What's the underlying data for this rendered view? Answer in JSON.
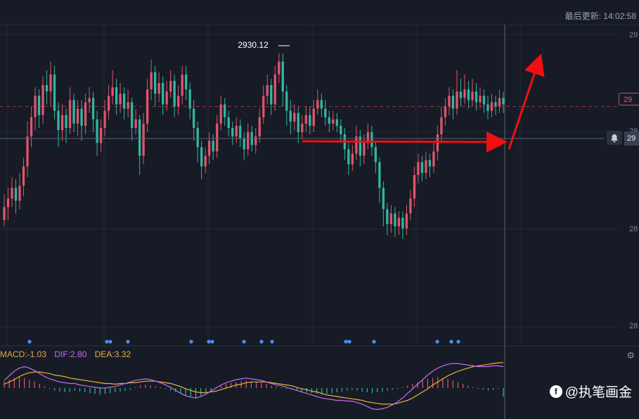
{
  "header": {
    "last_update": "最后更新: 14:02:58"
  },
  "watermark": {
    "text": "@执笔画金"
  },
  "colors": {
    "up": "#e0556a",
    "down": "#2fb8a1",
    "background": "#161b26",
    "grid": "#222938",
    "dif": "#c86bf2",
    "dea": "#e8b33c",
    "macd_label": "#e8a64a",
    "arrow": "#f01010",
    "dot": "#4a8ff0"
  },
  "icons": [
    "bell-icon",
    "gear-icon",
    "watermark-logo-icon"
  ],
  "y_axis": {
    "tick_labels": [
      "29",
      "29",
      "28",
      "28"
    ],
    "price_tag": "29",
    "current_tag": "29"
  },
  "macd": {
    "macd_label": "MACD:-1.03",
    "dif_label": "DIF:2.80",
    "dea_label": "DEA:3.32"
  },
  "chart_data": {
    "type": "candlestick",
    "title": "",
    "annotation": {
      "label": "2930.12",
      "value": 2930.12
    },
    "ylim": [
      2802,
      2940
    ],
    "reference_price": 2905,
    "current_price": 2890,
    "signal_dot_positions": [
      42,
      152,
      157,
      182,
      272,
      297,
      302,
      347,
      372,
      387,
      492,
      497,
      532,
      622,
      642,
      652
    ],
    "candles": [
      [
        2852,
        2858,
        2864,
        2849
      ],
      [
        2858,
        2862,
        2867,
        2852
      ],
      [
        2862,
        2867,
        2872,
        2858
      ],
      [
        2867,
        2861,
        2871,
        2855
      ],
      [
        2861,
        2868,
        2874,
        2857
      ],
      [
        2868,
        2877,
        2881,
        2863
      ],
      [
        2877,
        2891,
        2898,
        2872
      ],
      [
        2891,
        2900,
        2905,
        2886
      ],
      [
        2900,
        2910,
        2914,
        2894
      ],
      [
        2910,
        2901,
        2913,
        2895
      ],
      [
        2901,
        2915,
        2919,
        2897
      ],
      [
        2915,
        2912,
        2922,
        2906
      ],
      [
        2912,
        2920,
        2926,
        2905
      ],
      [
        2920,
        2903,
        2924,
        2899
      ],
      [
        2903,
        2894,
        2907,
        2886
      ],
      [
        2894,
        2901,
        2906,
        2889
      ],
      [
        2901,
        2895,
        2904,
        2888
      ],
      [
        2895,
        2908,
        2914,
        2892
      ],
      [
        2908,
        2897,
        2911,
        2893
      ],
      [
        2897,
        2904,
        2908,
        2891
      ],
      [
        2904,
        2896,
        2908,
        2889
      ],
      [
        2896,
        2907,
        2911,
        2892
      ],
      [
        2907,
        2909,
        2914,
        2902
      ],
      [
        2909,
        2899,
        2912,
        2893
      ],
      [
        2899,
        2888,
        2903,
        2882
      ],
      [
        2888,
        2895,
        2899,
        2884
      ],
      [
        2895,
        2903,
        2908,
        2891
      ],
      [
        2903,
        2910,
        2915,
        2899
      ],
      [
        2910,
        2914,
        2922,
        2906
      ],
      [
        2914,
        2906,
        2918,
        2901
      ],
      [
        2906,
        2911,
        2916,
        2902
      ],
      [
        2911,
        2904,
        2914,
        2899
      ],
      [
        2904,
        2907,
        2913,
        2900
      ],
      [
        2907,
        2895,
        2909,
        2889
      ],
      [
        2895,
        2899,
        2904,
        2892
      ],
      [
        2899,
        2882,
        2901,
        2873
      ],
      [
        2882,
        2897,
        2902,
        2878
      ],
      [
        2897,
        2913,
        2918,
        2893
      ],
      [
        2913,
        2921,
        2927,
        2908
      ],
      [
        2921,
        2911,
        2924,
        2905
      ],
      [
        2911,
        2916,
        2921,
        2907
      ],
      [
        2916,
        2906,
        2919,
        2901
      ],
      [
        2906,
        2912,
        2917,
        2903
      ],
      [
        2912,
        2917,
        2922,
        2909
      ],
      [
        2917,
        2905,
        2920,
        2900
      ],
      [
        2905,
        2910,
        2915,
        2901
      ],
      [
        2910,
        2920,
        2924,
        2906
      ],
      [
        2920,
        2913,
        2924,
        2908
      ],
      [
        2913,
        2904,
        2916,
        2899
      ],
      [
        2904,
        2895,
        2908,
        2889
      ],
      [
        2895,
        2886,
        2898,
        2879
      ],
      [
        2886,
        2877,
        2889,
        2871
      ],
      [
        2877,
        2882,
        2886,
        2874
      ],
      [
        2882,
        2889,
        2893,
        2878
      ],
      [
        2889,
        2884,
        2892,
        2880
      ],
      [
        2884,
        2897,
        2901,
        2881
      ],
      [
        2897,
        2906,
        2910,
        2894
      ],
      [
        2906,
        2900,
        2909,
        2896
      ],
      [
        2900,
        2895,
        2903,
        2891
      ],
      [
        2895,
        2891,
        2898,
        2887
      ],
      [
        2891,
        2896,
        2900,
        2888
      ],
      [
        2896,
        2890,
        2899,
        2886
      ],
      [
        2890,
        2885,
        2893,
        2880
      ],
      [
        2885,
        2893,
        2897,
        2882
      ],
      [
        2893,
        2887,
        2896,
        2884
      ],
      [
        2887,
        2891,
        2895,
        2883
      ],
      [
        2891,
        2900,
        2904,
        2888
      ],
      [
        2900,
        2910,
        2915,
        2897
      ],
      [
        2910,
        2915,
        2920,
        2906
      ],
      [
        2915,
        2906,
        2918,
        2901
      ],
      [
        2906,
        2920,
        2924,
        2903
      ],
      [
        2920,
        2926,
        2930,
        2916
      ],
      [
        2926,
        2912,
        2930,
        2905
      ],
      [
        2912,
        2903,
        2915,
        2896
      ],
      [
        2903,
        2898,
        2908,
        2892
      ],
      [
        2898,
        2902,
        2906,
        2894
      ],
      [
        2902,
        2893,
        2905,
        2888
      ],
      [
        2893,
        2897,
        2901,
        2890
      ],
      [
        2897,
        2901,
        2905,
        2893
      ],
      [
        2901,
        2896,
        2905,
        2892
      ],
      [
        2896,
        2904,
        2908,
        2893
      ],
      [
        2904,
        2908,
        2913,
        2901
      ],
      [
        2908,
        2904,
        2911,
        2900
      ],
      [
        2904,
        2900,
        2908,
        2896
      ],
      [
        2900,
        2897,
        2903,
        2893
      ],
      [
        2897,
        2899,
        2903,
        2894
      ],
      [
        2899,
        2896,
        2902,
        2893
      ],
      [
        2896,
        2892,
        2899,
        2888
      ],
      [
        2892,
        2885,
        2895,
        2880
      ],
      [
        2885,
        2878,
        2888,
        2873
      ],
      [
        2878,
        2883,
        2887,
        2875
      ],
      [
        2883,
        2891,
        2896,
        2880
      ],
      [
        2891,
        2882,
        2894,
        2877
      ],
      [
        2882,
        2888,
        2892,
        2878
      ],
      [
        2888,
        2893,
        2897,
        2885
      ],
      [
        2893,
        2886,
        2896,
        2882
      ],
      [
        2886,
        2879,
        2889,
        2874
      ],
      [
        2879,
        2867,
        2881,
        2860
      ],
      [
        2867,
        2857,
        2870,
        2849
      ],
      [
        2857,
        2850,
        2860,
        2845
      ],
      [
        2850,
        2855,
        2859,
        2846
      ],
      [
        2855,
        2849,
        2858,
        2844
      ],
      [
        2849,
        2853,
        2856,
        2845
      ],
      [
        2853,
        2848,
        2856,
        2843
      ],
      [
        2848,
        2855,
        2859,
        2845
      ],
      [
        2855,
        2862,
        2866,
        2852
      ],
      [
        2862,
        2873,
        2877,
        2858
      ],
      [
        2873,
        2879,
        2883,
        2869
      ],
      [
        2879,
        2874,
        2882,
        2870
      ],
      [
        2874,
        2880,
        2884,
        2871
      ],
      [
        2880,
        2877,
        2883,
        2872
      ],
      [
        2877,
        2884,
        2888,
        2874
      ],
      [
        2884,
        2892,
        2896,
        2880
      ],
      [
        2892,
        2900,
        2905,
        2888
      ],
      [
        2900,
        2905,
        2909,
        2896
      ],
      [
        2905,
        2910,
        2914,
        2901
      ],
      [
        2910,
        2904,
        2913,
        2899
      ],
      [
        2904,
        2912,
        2922,
        2901
      ],
      [
        2912,
        2909,
        2918,
        2905
      ],
      [
        2909,
        2913,
        2920,
        2906
      ],
      [
        2913,
        2908,
        2917,
        2904
      ],
      [
        2908,
        2912,
        2918,
        2905
      ],
      [
        2912,
        2907,
        2916,
        2903
      ],
      [
        2907,
        2910,
        2914,
        2904
      ],
      [
        2910,
        2906,
        2913,
        2902
      ],
      [
        2906,
        2903,
        2910,
        2899
      ],
      [
        2903,
        2907,
        2911,
        2900
      ],
      [
        2907,
        2905,
        2910,
        2901
      ],
      [
        2905,
        2909,
        2913,
        2902
      ],
      [
        2909,
        2906,
        2912,
        2902
      ]
    ],
    "macd_histogram": [
      0.8,
      1.0,
      1.2,
      1.3,
      1.2,
      1.0,
      0.8,
      0.5,
      0.2,
      -0.1,
      -0.3,
      -0.4,
      -0.5,
      -0.4,
      -0.3,
      -0.4,
      -0.5,
      -0.6,
      -0.7,
      -0.8,
      -0.7,
      -0.6,
      -0.5,
      -0.4,
      -0.3,
      -0.2,
      0.1,
      0.3,
      0.4,
      0.3,
      0.2,
      0.1,
      -0.1,
      -0.3,
      -0.5,
      -0.7,
      -0.9,
      -1.0,
      -1.1,
      -0.9,
      -0.6,
      -0.3,
      0.1,
      0.3,
      0.5,
      0.6,
      0.7,
      0.8,
      0.9,
      0.8,
      0.7,
      0.6,
      0.5,
      0.3,
      0.2,
      0.1,
      -0.1,
      -0.2,
      -0.3,
      -0.4,
      -0.5,
      -0.6,
      -0.7,
      -0.8,
      -0.7,
      -0.6,
      -0.5,
      -0.4,
      -0.3,
      -0.2,
      -0.3,
      -0.4,
      -0.5,
      -0.6,
      -0.5,
      -0.4,
      -0.3,
      -0.2,
      -0.1,
      0.1,
      0.3,
      0.5,
      0.7,
      0.9,
      1.1,
      1.2,
      1.3,
      1.2,
      1.1,
      0.9,
      0.7,
      0.5,
      0.3,
      0.1,
      -0.1,
      -0.2,
      -0.3,
      -0.2,
      -0.1,
      -1.03
    ],
    "dif": [
      1.0,
      1.6,
      2.2,
      2.6,
      2.8,
      2.6,
      2.3,
      1.9,
      1.5,
      1.2,
      1.0,
      0.8,
      0.7,
      0.6,
      0.6,
      0.4,
      0.3,
      0.2,
      0.1,
      0.0,
      0.0,
      0.1,
      0.2,
      0.4,
      0.6,
      0.8,
      1.0,
      1.1,
      1.2,
      1.1,
      0.9,
      0.7,
      0.4,
      0.1,
      -0.3,
      -0.7,
      -1.0,
      -1.2,
      -1.3,
      -1.1,
      -0.8,
      -0.4,
      0.0,
      0.4,
      0.7,
      0.9,
      1.1,
      1.2,
      1.3,
      1.2,
      1.1,
      1.0,
      0.8,
      0.6,
      0.4,
      0.3,
      0.1,
      -0.1,
      -0.3,
      -0.5,
      -0.7,
      -0.9,
      -1.1,
      -1.3,
      -1.4,
      -1.5,
      -1.6,
      -1.6,
      -1.7,
      -1.7,
      -1.9,
      -2.1,
      -2.4,
      -2.7,
      -2.8,
      -2.7,
      -2.5,
      -2.2,
      -1.8,
      -1.3,
      -0.7,
      -0.1,
      0.5,
      1.1,
      1.7,
      2.2,
      2.6,
      2.9,
      3.1,
      3.2,
      3.2,
      3.1,
      3.0,
      2.9,
      2.8,
      2.8,
      2.8,
      2.9,
      2.9,
      2.8
    ],
    "dea": [
      0.5,
      0.8,
      1.1,
      1.5,
      1.8,
      2.0,
      2.1,
      2.1,
      2.0,
      1.9,
      1.7,
      1.6,
      1.5,
      1.3,
      1.2,
      1.1,
      1.0,
      0.9,
      0.8,
      0.7,
      0.6,
      0.6,
      0.5,
      0.6,
      0.6,
      0.7,
      0.7,
      0.8,
      0.9,
      0.9,
      0.9,
      0.8,
      0.7,
      0.6,
      0.4,
      0.2,
      -0.1,
      -0.3,
      -0.5,
      -0.6,
      -0.6,
      -0.5,
      -0.4,
      -0.2,
      0.0,
      0.2,
      0.4,
      0.5,
      0.7,
      0.8,
      0.8,
      0.8,
      0.8,
      0.7,
      0.6,
      0.5,
      0.4,
      0.3,
      0.1,
      -0.1,
      -0.2,
      -0.4,
      -0.5,
      -0.7,
      -0.9,
      -1.0,
      -1.1,
      -1.2,
      -1.3,
      -1.4,
      -1.5,
      -1.6,
      -1.8,
      -1.9,
      -2.0,
      -2.1,
      -2.1,
      -2.1,
      -2.0,
      -1.8,
      -1.6,
      -1.3,
      -0.9,
      -0.5,
      -0.1,
      0.4,
      0.8,
      1.2,
      1.6,
      1.9,
      2.2,
      2.4,
      2.6,
      2.8,
      2.9,
      3.0,
      3.1,
      3.2,
      3.3,
      3.32
    ]
  }
}
